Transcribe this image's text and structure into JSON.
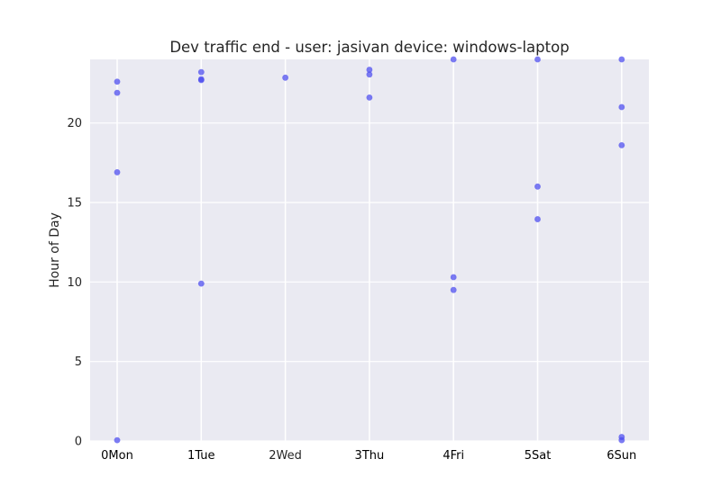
{
  "chart_data": {
    "type": "scatter",
    "title": "Dev traffic end - user: jasivan device: windows-laptop",
    "xlabel": "",
    "ylabel": "Hour of Day",
    "ylim": [
      0,
      24
    ],
    "yticks": [
      0,
      5,
      10,
      15,
      20
    ],
    "categories": [
      "0Mon",
      "1Tue",
      "2Wed",
      "3Thu",
      "4Fri",
      "5Sat",
      "6Sun"
    ],
    "grid": true,
    "points": [
      {
        "x": 0,
        "y": 22.6
      },
      {
        "x": 0,
        "y": 21.9
      },
      {
        "x": 0,
        "y": 16.9
      },
      {
        "x": 0,
        "y": 0.05
      },
      {
        "x": 1,
        "y": 23.2
      },
      {
        "x": 1,
        "y": 22.75
      },
      {
        "x": 1,
        "y": 22.7
      },
      {
        "x": 1,
        "y": 9.9
      },
      {
        "x": 2,
        "y": 22.85
      },
      {
        "x": 3,
        "y": 23.35
      },
      {
        "x": 3,
        "y": 23.05
      },
      {
        "x": 3,
        "y": 21.6
      },
      {
        "x": 4,
        "y": 24.0
      },
      {
        "x": 4,
        "y": 10.3
      },
      {
        "x": 4,
        "y": 9.5
      },
      {
        "x": 5,
        "y": 24.0
      },
      {
        "x": 5,
        "y": 16.0
      },
      {
        "x": 5,
        "y": 13.95
      },
      {
        "x": 6,
        "y": 24.0
      },
      {
        "x": 6,
        "y": 21.0
      },
      {
        "x": 6,
        "y": 18.6
      },
      {
        "x": 6,
        "y": 0.25
      },
      {
        "x": 6,
        "y": 0.05
      }
    ]
  }
}
